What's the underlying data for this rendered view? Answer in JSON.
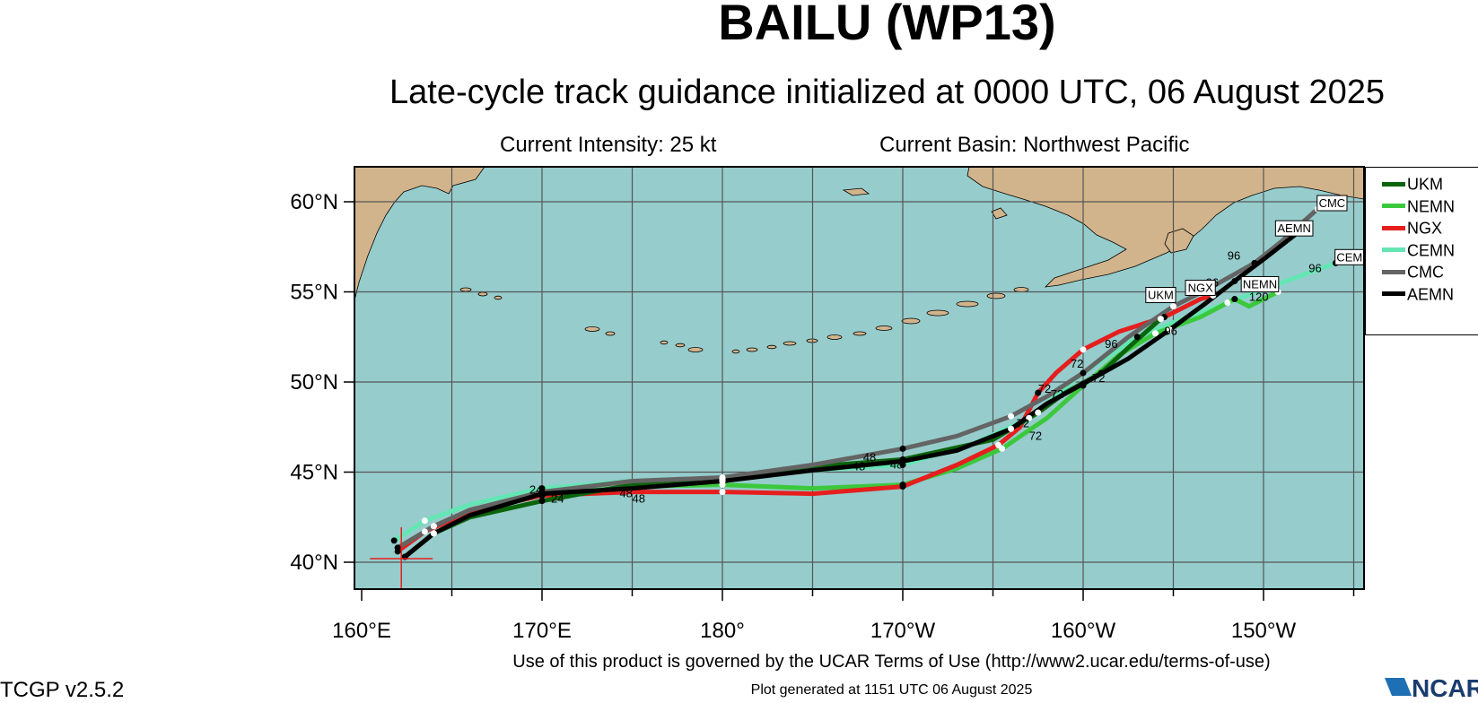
{
  "header": {
    "title": "BAILU (WP13)",
    "subtitle": "Late-cycle track guidance initialized at 0000 UTC, 06 August 2025",
    "intensity": "Current Intensity: 25 kt",
    "basin": "Current Basin: Northwest Pacific"
  },
  "footer": {
    "terms": "Use of this product is governed by the UCAR Terms of Use (http://www2.ucar.edu/terms-of-use)",
    "generated": "Plot generated at 1151 UTC   06 August 2025",
    "version": "TCGP v2.5.2",
    "logo_text": "NCAR"
  },
  "axes": {
    "lon_ticks": [
      "160°E",
      "170°E",
      "180°",
      "170°W",
      "160°W",
      "150°W"
    ],
    "lat_ticks": [
      "60°N",
      "55°N",
      "50°N",
      "45°N",
      "40°N"
    ]
  },
  "colors": {
    "ocean": "#96cccc",
    "land": "#d2b48c",
    "UKM": "#0a640a",
    "NEMN": "#3cc83c",
    "NGX": "#e61e1e",
    "CEMN": "#64e6b4",
    "CMC": "#646464",
    "AEMN": "#000000"
  },
  "legend": [
    {
      "name": "UKM",
      "color": "#0a640a"
    },
    {
      "name": "NEMN",
      "color": "#3cc83c"
    },
    {
      "name": "NGX",
      "color": "#e61e1e"
    },
    {
      "name": "CEMN",
      "color": "#64e6b4"
    },
    {
      "name": "CMC",
      "color": "#646464"
    },
    {
      "name": "AEMN",
      "color": "#000000"
    }
  ],
  "initial_position": {
    "lon": 162.2,
    "lat": 40.2
  },
  "tracks": [
    {
      "name": "CEMN",
      "color": "#64e6b4",
      "points": [
        [
          161.8,
          41.2
        ],
        [
          163.5,
          42.3
        ],
        [
          166,
          43.2
        ],
        [
          170,
          44.1
        ],
        [
          175,
          44.5
        ],
        [
          180,
          44.6
        ],
        [
          185,
          45.1
        ],
        [
          190,
          45.4
        ],
        [
          194,
          46.6
        ],
        [
          197,
          48
        ],
        [
          200,
          50.5
        ],
        [
          203,
          52.5
        ],
        [
          205.5,
          53.5
        ],
        [
          208,
          54.4
        ],
        [
          211,
          55.5
        ],
        [
          214,
          56.6
        ]
      ]
    },
    {
      "name": "NEMN",
      "color": "#3cc83c",
      "points": [
        [
          162,
          40.8
        ],
        [
          164,
          42
        ],
        [
          166,
          42.9
        ],
        [
          170,
          43.7
        ],
        [
          175,
          44.2
        ],
        [
          180,
          44.3
        ],
        [
          185,
          44.1
        ],
        [
          190,
          44.3
        ],
        [
          193,
          45.2
        ],
        [
          195.5,
          46.3
        ],
        [
          198,
          48
        ],
        [
          200,
          49.8
        ],
        [
          202,
          51.5
        ],
        [
          204,
          52.7
        ],
        [
          206.5,
          53.6
        ],
        [
          208.4,
          54.6
        ],
        [
          209.2,
          54.2
        ],
        [
          210.8,
          55
        ]
      ]
    },
    {
      "name": "NGX",
      "color": "#e61e1e",
      "points": [
        [
          162,
          40.6
        ],
        [
          163.5,
          41.7
        ],
        [
          166,
          42.8
        ],
        [
          170,
          43.7
        ],
        [
          175,
          43.9
        ],
        [
          180,
          43.9
        ],
        [
          185,
          43.8
        ],
        [
          190,
          44.2
        ],
        [
          193,
          45.4
        ],
        [
          195.3,
          46.5
        ],
        [
          196.5,
          47.5
        ],
        [
          197.5,
          49.4
        ],
        [
          198.5,
          50.5
        ],
        [
          200,
          51.8
        ],
        [
          202,
          52.8
        ],
        [
          204.5,
          53.6
        ],
        [
          206.5,
          54.6
        ],
        [
          207.2,
          54.8
        ]
      ]
    },
    {
      "name": "UKM",
      "color": "#0a640a",
      "points": [
        [
          162.4,
          40.3
        ],
        [
          164,
          41.6
        ],
        [
          166,
          42.5
        ],
        [
          170,
          43.4
        ],
        [
          175,
          44.3
        ],
        [
          180,
          44.5
        ],
        [
          185,
          45.3
        ],
        [
          190,
          45.7
        ],
        [
          195,
          46.8
        ],
        [
          197.5,
          48.3
        ],
        [
          199,
          49.4
        ],
        [
          201,
          50.5
        ],
        [
          202.5,
          51.9
        ],
        [
          204.3,
          53.5
        ]
      ]
    },
    {
      "name": "CMC",
      "color": "#646464",
      "points": [
        [
          162,
          40.8
        ],
        [
          164,
          42
        ],
        [
          166,
          42.9
        ],
        [
          170,
          43.9
        ],
        [
          175,
          44.5
        ],
        [
          180,
          44.7
        ],
        [
          185,
          45.4
        ],
        [
          190,
          46.3
        ],
        [
          193,
          47
        ],
        [
          196,
          48.1
        ],
        [
          198,
          49.2
        ],
        [
          200,
          50.5
        ],
        [
          202.5,
          52.5
        ],
        [
          205,
          54.2
        ],
        [
          207,
          55.2
        ],
        [
          209.5,
          56.6
        ],
        [
          211,
          57.8
        ],
        [
          213,
          59.6
        ]
      ]
    },
    {
      "name": "AEMN",
      "color": "#000000",
      "points": [
        [
          162.4,
          40.3
        ],
        [
          164,
          41.6
        ],
        [
          166,
          42.6
        ],
        [
          170,
          43.8
        ],
        [
          175,
          44.1
        ],
        [
          180,
          44.5
        ],
        [
          185,
          45.1
        ],
        [
          190,
          45.6
        ],
        [
          193,
          46.2
        ],
        [
          196,
          47.4
        ],
        [
          198,
          48.8
        ],
        [
          200,
          49.9
        ],
        [
          202.5,
          51.3
        ],
        [
          204.8,
          52.9
        ],
        [
          206.7,
          54.3
        ],
        [
          208.4,
          55.6
        ],
        [
          210,
          56.8
        ],
        [
          212.3,
          58.6
        ]
      ]
    }
  ],
  "hour_labels": [
    {
      "text": "24",
      "lon": 169.3,
      "lat": 43.8
    },
    {
      "text": "24",
      "lon": 170.5,
      "lat": 43.3
    },
    {
      "text": "48",
      "lon": 174.3,
      "lat": 43.6
    },
    {
      "text": "48",
      "lon": 175,
      "lat": 43.3
    },
    {
      "text": "48",
      "lon": 187.2,
      "lat": 45.1
    },
    {
      "text": "48",
      "lon": 187.8,
      "lat": 45.6
    },
    {
      "text": "48",
      "lon": 189.3,
      "lat": 45.2
    },
    {
      "text": "72",
      "lon": 196.3,
      "lat": 47.5
    },
    {
      "text": "72",
      "lon": 197,
      "lat": 46.8
    },
    {
      "text": "72",
      "lon": 197.5,
      "lat": 49.4
    },
    {
      "text": "72",
      "lon": 198.2,
      "lat": 49.1
    },
    {
      "text": "72",
      "lon": 199.3,
      "lat": 50.8
    },
    {
      "text": "72",
      "lon": 200.5,
      "lat": 50
    },
    {
      "text": "96",
      "lon": 201.2,
      "lat": 51.9
    },
    {
      "text": "96",
      "lon": 204.5,
      "lat": 52.6
    },
    {
      "text": "96",
      "lon": 206.8,
      "lat": 55.3
    },
    {
      "text": "96",
      "lon": 208,
      "lat": 56.8
    },
    {
      "text": "96",
      "lon": 212.5,
      "lat": 56.1
    },
    {
      "text": "120",
      "lon": 209.2,
      "lat": 54.5
    }
  ],
  "end_labels": [
    {
      "text": "UKM",
      "lon": 204.3,
      "lat": 54.8
    },
    {
      "text": "NGX",
      "lon": 206.5,
      "lat": 55.2
    },
    {
      "text": "NEMN",
      "lon": 209.8,
      "lat": 55.4
    },
    {
      "text": "CEMN",
      "lon": 215,
      "lat": 56.9
    },
    {
      "text": "AEMN",
      "lon": 211.7,
      "lat": 58.5
    },
    {
      "text": "CMC",
      "lon": 213.8,
      "lat": 59.9
    }
  ]
}
